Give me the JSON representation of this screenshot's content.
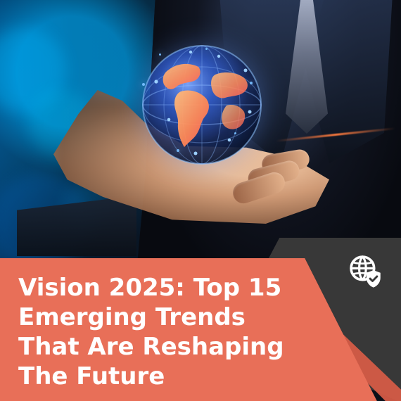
{
  "title": {
    "lines": [
      "Vision 2025: Top 15",
      "Emerging Trends",
      "That Are Reshaping",
      "The Future"
    ]
  },
  "icons": {
    "hero_globe": "globe-hologram-icon",
    "corner_icon": "globe-shield-icon"
  },
  "colors": {
    "accent": "#E86F58",
    "accent_dark": "#D45B46",
    "panel_dark": "#383838",
    "title_text": "#FFFFFF"
  }
}
